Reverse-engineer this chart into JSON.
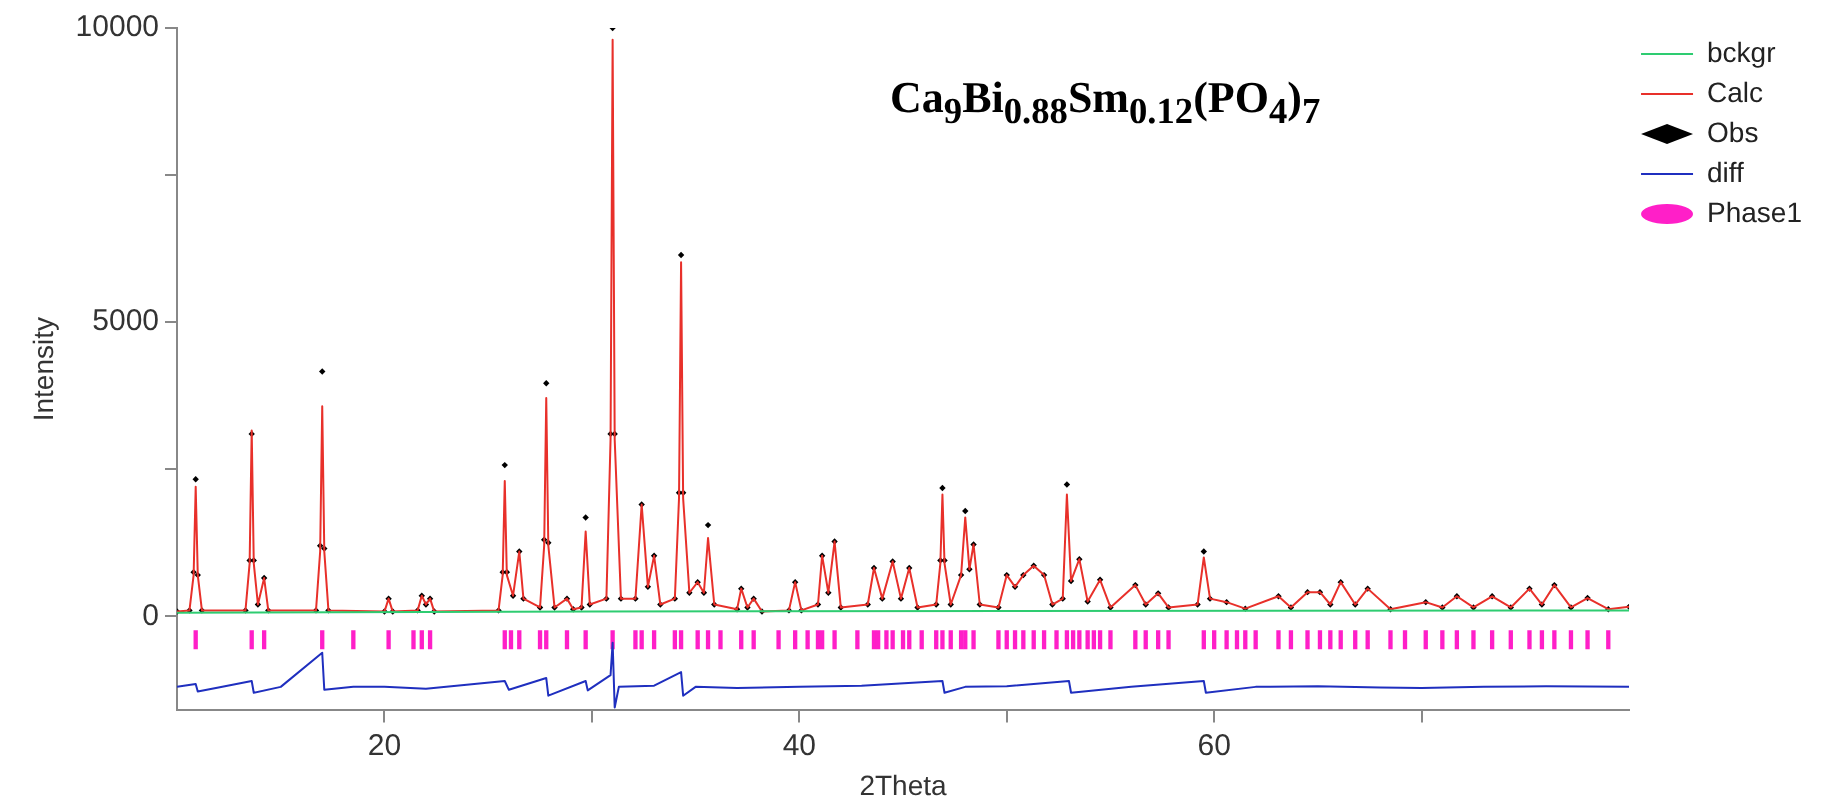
{
  "chart_data": {
    "type": "line",
    "title": "Ca$_{9}$Bi$_{0.88}$Sm$_{0.12}$(PO$_{4}$)$_{7}$",
    "xlabel": "2Theta",
    "ylabel": "Intensity",
    "xlim": [
      10,
      80
    ],
    "ylim": [
      -1600,
      10000
    ],
    "xticks": [
      20,
      {
        "value": 30,
        "label": null
      },
      40,
      {
        "value": 50,
        "label": null
      },
      60,
      {
        "value": 70,
        "label": null
      }
    ],
    "yticks": [
      0,
      {
        "value": 2500,
        "label": null
      },
      5000,
      {
        "value": 7500,
        "label": null
      },
      10000
    ],
    "grid": false,
    "legend": "top right",
    "series": [
      {
        "name": "bckgr",
        "color": "#2ecc71",
        "x": [
          10,
          30,
          50,
          80
        ],
        "values": [
          60,
          80,
          90,
          100
        ]
      },
      {
        "name": "Calc",
        "color": "#e8302a",
        "x": [
          10,
          10.6,
          10.8,
          10.9,
          11.0,
          11.2,
          13.3,
          13.5,
          13.6,
          13.7,
          13.9,
          14.2,
          14.4,
          16.7,
          16.9,
          17.0,
          17.1,
          17.3,
          20.0,
          20.2,
          20.4,
          21.6,
          21.8,
          22.0,
          22.2,
          22.4,
          25.5,
          25.7,
          25.8,
          25.9,
          26.2,
          26.5,
          26.7,
          27.5,
          27.7,
          27.8,
          27.9,
          28.2,
          28.8,
          29.1,
          29.5,
          29.7,
          29.9,
          30.7,
          30.9,
          31.0,
          31.1,
          31.4,
          32.1,
          32.4,
          32.7,
          33.0,
          33.3,
          34.0,
          34.2,
          34.3,
          34.4,
          34.7,
          35.1,
          35.4,
          35.6,
          35.9,
          37.0,
          37.2,
          37.5,
          37.8,
          38.2,
          39.5,
          39.8,
          40.1,
          40.9,
          41.1,
          41.4,
          41.7,
          42.0,
          43.3,
          43.6,
          44.0,
          44.5,
          44.9,
          45.3,
          45.7,
          46.6,
          46.8,
          46.9,
          47.0,
          47.3,
          47.8,
          48.0,
          48.2,
          48.4,
          48.7,
          49.6,
          50.0,
          50.4,
          50.8,
          51.3,
          51.8,
          52.2,
          52.7,
          52.9,
          53.1,
          53.5,
          53.9,
          54.5,
          55.0,
          56.2,
          56.7,
          57.3,
          57.8,
          59.2,
          59.5,
          59.8,
          60.6,
          61.5,
          63.1,
          63.7,
          64.5,
          65.1,
          65.6,
          66.1,
          66.8,
          67.4,
          68.5,
          70.2,
          71.0,
          71.7,
          72.5,
          73.4,
          74.3,
          75.2,
          75.8,
          76.4,
          77.2,
          78.0,
          79.0,
          80.0
        ],
        "values": [
          80,
          100,
          700,
          2200,
          700,
          100,
          100,
          900,
          3160,
          900,
          200,
          650,
          100,
          100,
          1100,
          3570,
          1100,
          100,
          80,
          300,
          80,
          100,
          350,
          200,
          300,
          80,
          100,
          700,
          2300,
          700,
          350,
          1100,
          300,
          150,
          1200,
          3710,
          1200,
          150,
          300,
          120,
          150,
          1440,
          200,
          300,
          3000,
          9800,
          3000,
          300,
          300,
          1900,
          500,
          1030,
          200,
          300,
          2000,
          6020,
          2000,
          400,
          580,
          400,
          1330,
          200,
          120,
          470,
          150,
          300,
          80,
          100,
          580,
          100,
          200,
          1030,
          400,
          1270,
          150,
          200,
          820,
          300,
          930,
          300,
          820,
          150,
          200,
          900,
          2070,
          900,
          200,
          700,
          1680,
          800,
          1220,
          200,
          150,
          700,
          500,
          700,
          860,
          700,
          200,
          300,
          2070,
          600,
          970,
          250,
          620,
          150,
          530,
          200,
          390,
          150,
          200,
          1000,
          300,
          240,
          130,
          340,
          150,
          410,
          410,
          200,
          580,
          200,
          470,
          120,
          240,
          150,
          340,
          150,
          340,
          150,
          470,
          200,
          530,
          150,
          310,
          120,
          160
        ]
      },
      {
        "name": "Obs",
        "color": "#000000",
        "type": "scatter",
        "marker": "diamond",
        "x": [
          10,
          10.6,
          10.8,
          10.9,
          11.0,
          11.2,
          13.3,
          13.5,
          13.6,
          13.7,
          13.9,
          14.2,
          14.4,
          16.7,
          16.9,
          17.0,
          17.1,
          17.3,
          20.0,
          20.2,
          20.4,
          21.6,
          21.8,
          22.0,
          22.2,
          22.4,
          25.5,
          25.7,
          25.8,
          25.9,
          26.2,
          26.5,
          26.7,
          27.5,
          27.7,
          27.8,
          27.9,
          28.2,
          28.8,
          29.1,
          29.5,
          29.7,
          29.9,
          30.7,
          30.9,
          31.0,
          31.1,
          31.4,
          32.1,
          32.4,
          32.7,
          33.0,
          33.3,
          34.0,
          34.2,
          34.3,
          34.4,
          34.7,
          35.1,
          35.4,
          35.6,
          35.9,
          37.0,
          37.2,
          37.5,
          37.8,
          38.2,
          39.5,
          39.8,
          40.1,
          40.9,
          41.1,
          41.4,
          41.7,
          42.0,
          43.3,
          43.6,
          44.0,
          44.5,
          44.9,
          45.3,
          45.7,
          46.6,
          46.8,
          46.9,
          47.0,
          47.3,
          47.8,
          48.0,
          48.2,
          48.4,
          48.7,
          49.6,
          50.0,
          50.4,
          50.8,
          51.3,
          51.8,
          52.2,
          52.7,
          52.9,
          53.1,
          53.5,
          53.9,
          54.5,
          55.0,
          56.2,
          56.7,
          57.3,
          57.8,
          59.2,
          59.5,
          59.8,
          60.6,
          61.5,
          63.1,
          63.7,
          64.5,
          65.1,
          65.6,
          66.1,
          66.8,
          67.4,
          68.5,
          70.2,
          71.0,
          71.7,
          72.5,
          73.4,
          74.3,
          75.2,
          75.8,
          76.4,
          77.2,
          78.0,
          79.0,
          80.0
        ],
        "values": [
          80,
          100,
          750,
          2330,
          700,
          100,
          100,
          950,
          3100,
          950,
          200,
          650,
          100,
          100,
          1200,
          4160,
          1150,
          100,
          80,
          300,
          80,
          100,
          350,
          200,
          300,
          80,
          100,
          750,
          2570,
          750,
          350,
          1100,
          300,
          150,
          1300,
          3960,
          1250,
          150,
          300,
          120,
          150,
          1680,
          200,
          300,
          3100,
          10000,
          3100,
          300,
          300,
          1900,
          500,
          1030,
          200,
          300,
          2100,
          6140,
          2100,
          400,
          580,
          400,
          1550,
          200,
          120,
          470,
          150,
          300,
          80,
          100,
          580,
          100,
          200,
          1030,
          400,
          1270,
          150,
          200,
          820,
          300,
          930,
          300,
          820,
          150,
          200,
          950,
          2180,
          950,
          200,
          700,
          1790,
          800,
          1220,
          200,
          150,
          700,
          500,
          700,
          860,
          700,
          200,
          300,
          2240,
          600,
          970,
          250,
          620,
          150,
          530,
          200,
          390,
          150,
          200,
          1100,
          300,
          240,
          130,
          340,
          150,
          410,
          410,
          200,
          580,
          200,
          470,
          120,
          240,
          150,
          340,
          150,
          340,
          150,
          470,
          200,
          530,
          150,
          310,
          120,
          160
        ]
      },
      {
        "name": "diff",
        "color": "#1f2fbf",
        "x": [
          10,
          10.9,
          11.0,
          12,
          13.6,
          13.7,
          15,
          17.0,
          17.1,
          18.5,
          20,
          22,
          25.8,
          26.0,
          27.8,
          27.9,
          29.7,
          29.8,
          30.9,
          31.0,
          31.1,
          31.3,
          33,
          34.3,
          34.4,
          35,
          37,
          40,
          43,
          46.9,
          47.0,
          48,
          50,
          53.0,
          53.1,
          56,
          59.5,
          59.6,
          62,
          65,
          68,
          70,
          73,
          76,
          80
        ],
        "values": [
          -1200,
          -1150,
          -1280,
          -1210,
          -1100,
          -1300,
          -1200,
          -620,
          -1250,
          -1200,
          -1200,
          -1230,
          -1100,
          -1250,
          -1050,
          -1350,
          -1100,
          -1260,
          -1000,
          -450,
          -1550,
          -1200,
          -1180,
          -950,
          -1350,
          -1200,
          -1220,
          -1200,
          -1180,
          -1100,
          -1300,
          -1200,
          -1190,
          -1100,
          -1300,
          -1200,
          -1100,
          -1300,
          -1200,
          -1190,
          -1210,
          -1220,
          -1200,
          -1190,
          -1200
        ]
      },
      {
        "name": "Phase1",
        "color": "#ff1fc8",
        "type": "bar",
        "marker": "circle",
        "x": [
          10.9,
          13.6,
          14.2,
          17.0,
          18.5,
          20.2,
          21.4,
          21.8,
          22.2,
          25.8,
          26.1,
          26.5,
          27.5,
          27.8,
          28.8,
          29.7,
          31.0,
          32.1,
          32.4,
          33.0,
          34.0,
          34.3,
          35.1,
          35.6,
          36.2,
          37.2,
          37.8,
          39.0,
          39.8,
          40.4,
          40.9,
          41.1,
          41.7,
          42.8,
          43.6,
          43.8,
          44.2,
          44.5,
          45.0,
          45.3,
          45.9,
          46.6,
          46.9,
          47.3,
          47.8,
          48.0,
          48.4,
          49.6,
          50.0,
          50.4,
          50.8,
          51.3,
          51.8,
          52.4,
          52.9,
          53.2,
          53.5,
          53.9,
          54.2,
          54.5,
          55.0,
          56.2,
          56.7,
          57.3,
          57.8,
          59.5,
          60.0,
          60.6,
          61.1,
          61.5,
          62.0,
          63.1,
          63.7,
          64.5,
          65.1,
          65.6,
          66.1,
          66.8,
          67.4,
          68.5,
          69.2,
          70.2,
          71.0,
          71.7,
          72.5,
          73.4,
          74.3,
          75.2,
          75.8,
          76.4,
          77.2,
          78.0,
          79.0
        ],
        "base": [
          -550,
          -550,
          -550,
          -550,
          -550,
          -550,
          -550,
          -550,
          -550,
          -550,
          -550,
          -550,
          -550,
          -550,
          -550,
          -550,
          -550,
          -550,
          -550,
          -550,
          -550,
          -550,
          -550,
          -550,
          -550,
          -550,
          -550,
          -550,
          -550,
          -550,
          -550,
          -550,
          -550,
          -550,
          -550,
          -550,
          -550,
          -550,
          -550,
          -550,
          -550,
          -550,
          -550,
          -550,
          -550,
          -550,
          -550,
          -550,
          -550,
          -550,
          -550,
          -550,
          -550,
          -550,
          -550,
          -550,
          -550,
          -550,
          -550,
          -550,
          -550,
          -550,
          -550,
          -550,
          -550,
          -550,
          -550,
          -550,
          -550,
          -550,
          -550,
          -550,
          -550,
          -550,
          -550,
          -550,
          -550,
          -550,
          -550,
          -550,
          -550,
          -550,
          -550,
          -550,
          -550,
          -550,
          -550,
          -550,
          -550,
          -550,
          -550,
          -550,
          -550
        ],
        "values": [
          300,
          300,
          300,
          300,
          300,
          300,
          300,
          300,
          300,
          300,
          300,
          300,
          300,
          300,
          300,
          300,
          300,
          300,
          300,
          300,
          300,
          300,
          300,
          300,
          300,
          300,
          300,
          300,
          300,
          300,
          300,
          300,
          300,
          300,
          300,
          300,
          300,
          300,
          300,
          300,
          300,
          300,
          300,
          300,
          300,
          300,
          300,
          300,
          300,
          300,
          300,
          300,
          300,
          300,
          300,
          300,
          300,
          300,
          300,
          300,
          300,
          300,
          300,
          300,
          300,
          300,
          300,
          300,
          300,
          300,
          300,
          300,
          300,
          300,
          300,
          300,
          300,
          300,
          300,
          300,
          300,
          300,
          300,
          300,
          300,
          300,
          300,
          300,
          300,
          300,
          300,
          300,
          300
        ]
      }
    ]
  }
}
